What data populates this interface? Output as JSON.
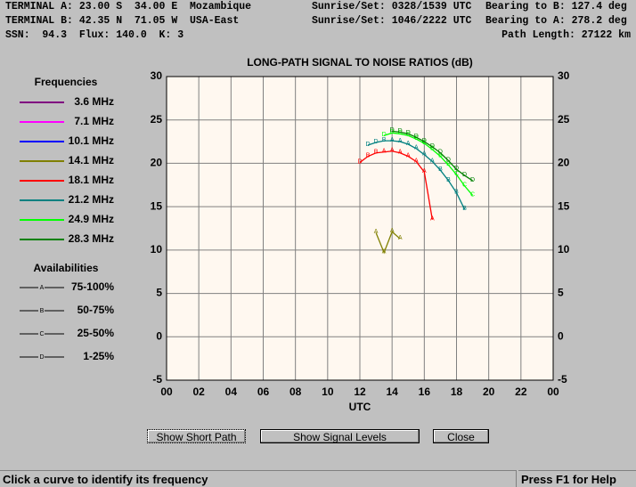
{
  "header": {
    "terminal_a": "TERMINAL A: 23.00 S  34.00 E  Mozambique",
    "sunrise_a": "Sunrise/Set: 0328/1539 UTC",
    "bearing_b": "Bearing to B: 127.4 deg",
    "terminal_b": "TERMINAL B: 42.35 N  71.05 W  USA-East",
    "sunrise_b": "Sunrise/Set: 1046/2222 UTC",
    "bearing_a": "Bearing to A: 278.2 deg",
    "solar": "SSN:  94.3  Flux: 140.0  K: 3",
    "path_length": "Path Length: 27122 km"
  },
  "chart_data": {
    "type": "line",
    "title": "LONG-PATH SIGNAL TO NOISE RATIOS (dB)",
    "x_label": "UTC",
    "x": [
      12,
      12.5,
      13,
      13.5,
      14,
      14.5,
      15,
      15.5,
      16,
      16.5,
      17,
      17.5,
      18,
      18.5,
      19
    ],
    "xlim": [
      0,
      24
    ],
    "xticks": [
      {
        "value": 0,
        "label": "00"
      },
      {
        "value": 2,
        "label": "02"
      },
      {
        "value": 4,
        "label": "04"
      },
      {
        "value": 6,
        "label": "06"
      },
      {
        "value": 8,
        "label": "08"
      },
      10,
      12,
      14,
      16,
      18,
      20,
      22,
      {
        "value": 24,
        "label": "00"
      }
    ],
    "ylim": [
      -5,
      30
    ],
    "yticks": [
      -5,
      0,
      5,
      10,
      15,
      20,
      25,
      30
    ],
    "grid": true,
    "legend_title": "Frequencies",
    "series": [
      {
        "name": "3.6 MHz",
        "color": "#800080",
        "values": [
          null,
          null,
          null,
          null,
          null,
          null,
          null,
          null,
          null,
          null,
          null,
          null,
          null,
          null,
          null
        ]
      },
      {
        "name": "7.1 MHz",
        "color": "#ff00ff",
        "values": [
          null,
          null,
          null,
          null,
          null,
          null,
          null,
          null,
          null,
          null,
          null,
          null,
          null,
          null,
          null
        ]
      },
      {
        "name": "10.1 MHz",
        "color": "#0000ff",
        "values": [
          null,
          null,
          null,
          null,
          null,
          null,
          null,
          null,
          null,
          null,
          null,
          null,
          null,
          null,
          null
        ]
      },
      {
        "name": "14.1 MHz",
        "color": "#808000",
        "values": [
          null,
          null,
          12.0,
          9.7,
          12.1,
          11.3,
          null,
          null,
          null,
          null,
          null,
          null,
          null,
          null,
          null
        ],
        "markers": [
          null,
          null,
          "A",
          "A",
          "A",
          "A",
          null,
          null,
          null,
          null,
          null,
          null,
          null,
          null,
          null
        ]
      },
      {
        "name": "18.1 MHz",
        "color": "#ff0000",
        "values": [
          20.1,
          20.8,
          21.2,
          21.3,
          21.4,
          21.2,
          20.8,
          20.2,
          19.0,
          13.5,
          null,
          null,
          null,
          null,
          null
        ],
        "markers": [
          "D",
          "B",
          "B",
          "A",
          "A",
          "A",
          "A",
          "A",
          "A",
          "A",
          null,
          null,
          null,
          null,
          null
        ]
      },
      {
        "name": "21.2 MHz",
        "color": "#008080",
        "values": [
          null,
          22.1,
          22.4,
          22.6,
          22.6,
          22.5,
          22.2,
          21.7,
          21.0,
          20.2,
          19.2,
          18.0,
          16.6,
          14.7,
          null
        ],
        "markers": [
          null,
          "D",
          "D",
          "B",
          "A",
          "A",
          "A",
          "A",
          "A",
          "A",
          "B",
          "B",
          "B",
          "B",
          null
        ]
      },
      {
        "name": "24.9 MHz",
        "color": "#00ff00",
        "values": [
          null,
          null,
          null,
          23.2,
          23.5,
          23.4,
          23.2,
          22.8,
          22.3,
          21.6,
          20.8,
          19.8,
          18.7,
          17.4,
          16.3
        ],
        "markers": [
          null,
          null,
          null,
          "D",
          "D",
          "C",
          "C",
          "C",
          "C",
          "B",
          "B",
          "B",
          "C",
          "C",
          "C"
        ]
      },
      {
        "name": "28.3 MHz",
        "color": "#008000",
        "values": [
          null,
          null,
          null,
          null,
          23.7,
          23.6,
          23.4,
          23.0,
          22.5,
          21.9,
          21.2,
          20.3,
          19.3,
          18.6,
          18.0
        ],
        "markers": [
          null,
          null,
          null,
          null,
          "D",
          "D",
          "D",
          "D",
          "D",
          "D",
          "D",
          "D",
          "D",
          "D",
          "D"
        ]
      }
    ],
    "availability_title": "Availabilities",
    "availabilities": [
      {
        "label": "75-100%",
        "symbol": "A"
      },
      {
        "label": "50-75%",
        "symbol": "B"
      },
      {
        "label": "25-50%",
        "symbol": "C"
      },
      {
        "label": "1-25%",
        "symbol": "D"
      }
    ]
  },
  "buttons": [
    "Show Short Path",
    "Show Signal Levels",
    "Close"
  ],
  "status": {
    "left": "Click a curve to identify its frequency",
    "right": "Press F1 for Help"
  }
}
